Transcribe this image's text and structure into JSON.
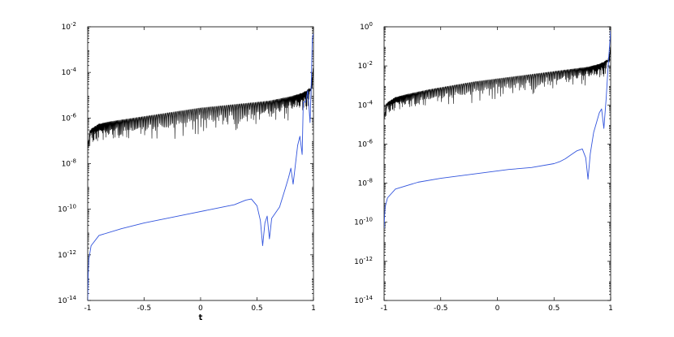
{
  "chart_data": [
    {
      "type": "line",
      "title": "",
      "xlabel": "t",
      "ylabel": "",
      "xscale": "linear",
      "yscale": "log",
      "xlim": [
        -1,
        1
      ],
      "ylim_exponents": [
        -14,
        -2
      ],
      "x_ticks": [
        "-1",
        "-0.5",
        "0",
        "0.5",
        "1"
      ],
      "y_ticks": [
        {
          "base": "10",
          "exp": "-14"
        },
        {
          "base": "10",
          "exp": "-12"
        },
        {
          "base": "10",
          "exp": "-10"
        },
        {
          "base": "10",
          "exp": "-8"
        },
        {
          "base": "10",
          "exp": "-6"
        },
        {
          "base": "10",
          "exp": "-4"
        },
        {
          "base": "10",
          "exp": "-2"
        }
      ],
      "grid": false,
      "series": [
        {
          "color": "#000000",
          "style": "oscillating",
          "x": [
            -1,
            -0.98,
            -0.9,
            -0.8,
            -0.6,
            -0.4,
            -0.2,
            0,
            0.2,
            0.4,
            0.6,
            0.8,
            0.9,
            0.95,
            0.98,
            1
          ],
          "y_exp": [
            -7.3,
            -6.5,
            -6.25,
            -6.15,
            -6.0,
            -5.85,
            -5.7,
            -5.55,
            -5.45,
            -5.35,
            -5.25,
            -5.05,
            -4.9,
            -4.75,
            -4.6,
            -3.5
          ],
          "dip_depth": 2.0
        },
        {
          "color": "#3355dd",
          "style": "smooth",
          "x": [
            -1,
            -0.995,
            -0.99,
            -0.97,
            -0.9,
            -0.7,
            -0.5,
            -0.3,
            -0.1,
            0.1,
            0.3,
            0.4,
            0.45,
            0.5,
            0.53,
            0.55,
            0.57,
            0.59,
            0.61,
            0.63,
            0.7,
            0.75,
            0.78,
            0.8,
            0.82,
            0.86,
            0.88,
            0.9,
            0.91,
            0.93,
            0.95,
            0.97,
            0.98,
            0.99,
            1
          ],
          "y_exp": [
            -14,
            -12.8,
            -12.2,
            -11.6,
            -11.15,
            -10.85,
            -10.6,
            -10.4,
            -10.2,
            -10.0,
            -9.8,
            -9.6,
            -9.55,
            -9.85,
            -10.5,
            -11.6,
            -10.6,
            -10.3,
            -11.3,
            -10.4,
            -9.9,
            -9.1,
            -8.6,
            -8.2,
            -8.9,
            -7.2,
            -6.8,
            -7.6,
            -5.3,
            -5.3,
            -4.8,
            -6.2,
            -4.6,
            -2.5,
            -2.3
          ]
        }
      ]
    },
    {
      "type": "line",
      "title": "",
      "xlabel": "",
      "ylabel": "",
      "xscale": "linear",
      "yscale": "log",
      "xlim": [
        -1,
        1
      ],
      "ylim_exponents": [
        -14,
        0
      ],
      "x_ticks": [
        "-1",
        "-0.5",
        "0",
        "0.5",
        "1"
      ],
      "y_ticks": [
        {
          "base": "10",
          "exp": "-14"
        },
        {
          "base": "10",
          "exp": "-12"
        },
        {
          "base": "10",
          "exp": "-10"
        },
        {
          "base": "10",
          "exp": "-8"
        },
        {
          "base": "10",
          "exp": "-6"
        },
        {
          "base": "10",
          "exp": "-4"
        },
        {
          "base": "10",
          "exp": "-2"
        },
        {
          "base": "10",
          "exp": "0"
        }
      ],
      "grid": false,
      "series": [
        {
          "color": "#000000",
          "style": "oscillating",
          "x": [
            -1,
            -0.98,
            -0.9,
            -0.8,
            -0.6,
            -0.4,
            -0.2,
            0,
            0.2,
            0.4,
            0.6,
            0.8,
            0.9,
            0.95,
            0.98,
            1
          ],
          "y_exp": [
            -4.7,
            -3.9,
            -3.6,
            -3.45,
            -3.2,
            -3.0,
            -2.8,
            -2.65,
            -2.5,
            -2.35,
            -2.2,
            -2.05,
            -1.9,
            -1.75,
            -1.6,
            -0.9
          ],
          "dip_depth": 1.8
        },
        {
          "color": "#3355dd",
          "style": "smooth",
          "x": [
            -1,
            -0.995,
            -0.99,
            -0.97,
            -0.9,
            -0.7,
            -0.5,
            -0.3,
            -0.1,
            0.1,
            0.3,
            0.5,
            0.55,
            0.6,
            0.65,
            0.7,
            0.75,
            0.78,
            0.8,
            0.82,
            0.85,
            0.88,
            0.9,
            0.92,
            0.94,
            0.96,
            0.98,
            1
          ],
          "y_exp": [
            -10.3,
            -9.6,
            -9.2,
            -8.75,
            -8.3,
            -7.95,
            -7.75,
            -7.6,
            -7.45,
            -7.3,
            -7.2,
            -7.0,
            -6.9,
            -6.75,
            -6.55,
            -6.35,
            -6.25,
            -6.7,
            -7.8,
            -6.5,
            -5.4,
            -4.8,
            -4.4,
            -4.2,
            -5.2,
            -3.7,
            -1.8,
            -0.2
          ]
        }
      ]
    }
  ]
}
